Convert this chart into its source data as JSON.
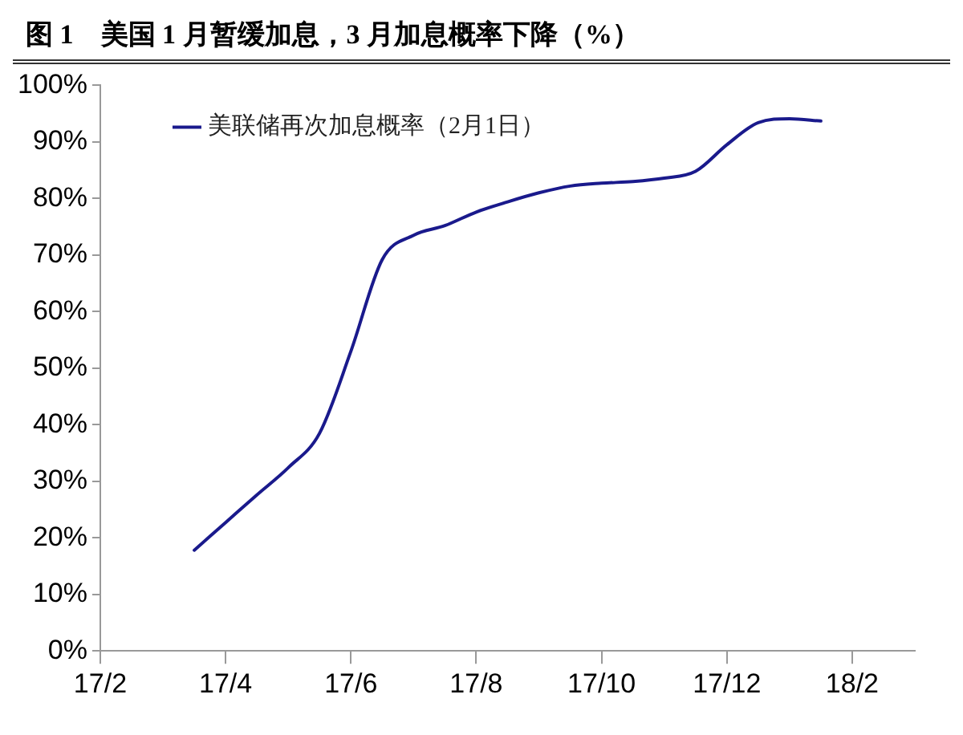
{
  "chart_data": {
    "type": "line",
    "title": "图 1　美国 1 月暂缓加息，3 月加息概率下降（%）",
    "categories": [
      "17/2",
      null,
      null,
      null,
      "17/4",
      null,
      null,
      null,
      "17/6",
      null,
      null,
      null,
      "17/8",
      null,
      null,
      null,
      "17/10",
      null,
      null,
      null,
      "17/12",
      null,
      null,
      null,
      "18/2",
      null,
      null
    ],
    "series": [
      {
        "name": "美联储再次加息概率（2月1日）",
        "color": "#1a1a8c",
        "values": [
          null,
          null,
          null,
          17.8,
          22.7,
          27.6,
          32.4,
          38.5,
          53,
          69.2,
          73.5,
          75.2,
          77.6,
          79.4,
          81.0,
          82.2,
          82.7,
          83.0,
          83.6,
          84.8,
          89.5,
          93.4,
          94.1,
          93.7,
          null,
          null,
          null
        ]
      }
    ],
    "ylim": [
      0,
      100
    ],
    "yticks": [
      {
        "value": 0,
        "label": "0%"
      },
      {
        "value": 10,
        "label": "10%"
      },
      {
        "value": 20,
        "label": "20%"
      },
      {
        "value": 30,
        "label": "30%"
      },
      {
        "value": 40,
        "label": "40%"
      },
      {
        "value": 50,
        "label": "50%"
      },
      {
        "value": 60,
        "label": "60%"
      },
      {
        "value": 70,
        "label": "70%"
      },
      {
        "value": 80,
        "label": "80%"
      },
      {
        "value": 90,
        "label": "90%"
      },
      {
        "value": 100,
        "label": "100%"
      }
    ],
    "grid": false,
    "legend": "top left",
    "marker": "none",
    "line_style": "solid"
  }
}
